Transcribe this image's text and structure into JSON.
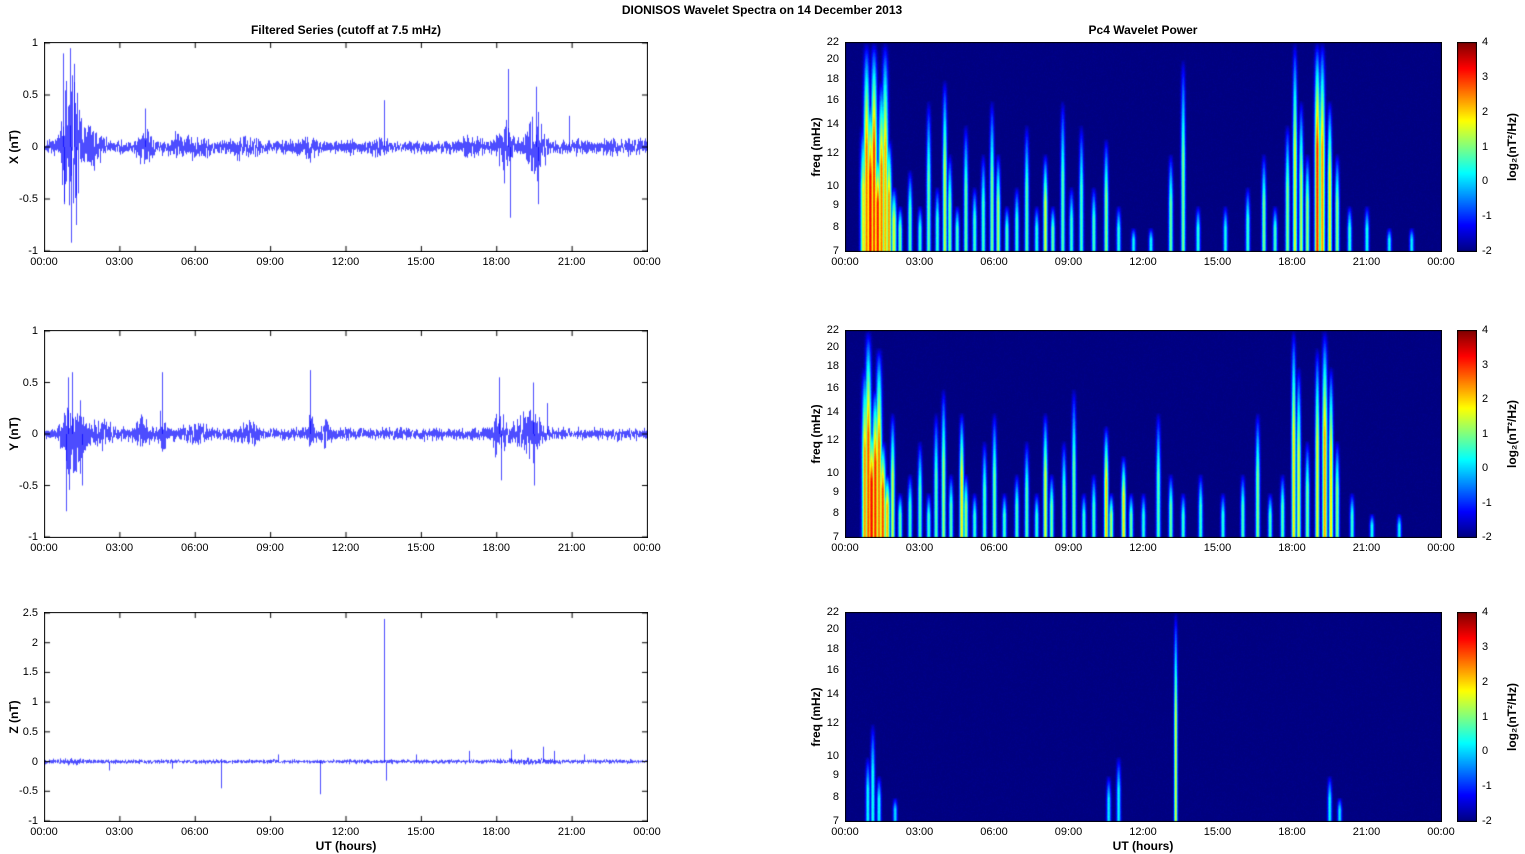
{
  "title": "DIONISOS Wavelet Spectra on 14 December  2013",
  "titles": {
    "left": "Filtered Series (cutoff at 7.5 mHz)",
    "right": "Pc4 Wavelet Power"
  },
  "labels": {
    "x": "UT (hours)",
    "freq": "freq (mHz)"
  },
  "x_ticks": [
    "00:00",
    "03:00",
    "06:00",
    "09:00",
    "12:00",
    "15:00",
    "18:00",
    "21:00",
    "00:00"
  ],
  "freq_ticks": [
    22,
    20,
    18,
    16,
    14,
    12,
    10,
    9,
    8,
    7
  ],
  "freq_range": [
    7,
    22
  ],
  "colorbar": {
    "label": "log₂(nT²/Hz)",
    "range": [
      -2,
      4
    ],
    "ticks": [
      4,
      3,
      2,
      1,
      0,
      -1,
      -2
    ]
  },
  "chart_data": [
    {
      "type": "line",
      "name": "x-filtered-series",
      "ylabel": "X (nT)",
      "ylim": [
        -1,
        1
      ],
      "yticks": [
        1,
        0.5,
        0,
        -0.5,
        -1
      ],
      "x_hours": [
        0,
        24
      ],
      "line_color": "#0000ff",
      "noise_nT": 0.065,
      "seed": 7,
      "bursts": [
        {
          "t": 1.05,
          "w": 0.28,
          "a": 0.5
        },
        {
          "t": 1.3,
          "w": 0.5,
          "a": 0.25
        },
        {
          "t": 0.8,
          "w": 0.12,
          "a": 0.25
        },
        {
          "t": 2.1,
          "w": 0.3,
          "a": 0.1
        },
        {
          "t": 4.0,
          "w": 0.25,
          "a": 0.2
        },
        {
          "t": 5.3,
          "w": 0.3,
          "a": 0.08
        },
        {
          "t": 6.2,
          "w": 0.5,
          "a": 0.05
        },
        {
          "t": 8.0,
          "w": 0.5,
          "a": 0.05
        },
        {
          "t": 10.5,
          "w": 0.3,
          "a": 0.07
        },
        {
          "t": 13.3,
          "w": 0.2,
          "a": 0.05
        },
        {
          "t": 16.9,
          "w": 0.4,
          "a": 0.05
        },
        {
          "t": 18.35,
          "w": 0.25,
          "a": 0.22
        },
        {
          "t": 19.55,
          "w": 0.35,
          "a": 0.28
        },
        {
          "t": 22.5,
          "w": 1.2,
          "a": 0.02
        }
      ],
      "spikes": [
        {
          "t": 0.75,
          "a": 0.9
        },
        {
          "t": 0.8,
          "a": -0.55
        },
        {
          "t": 1.02,
          "a": 0.95
        },
        {
          "t": 1.08,
          "a": -0.92
        },
        {
          "t": 1.2,
          "a": 0.8
        },
        {
          "t": 1.28,
          "a": -0.75
        },
        {
          "t": 4.0,
          "a": 0.37
        },
        {
          "t": 13.55,
          "a": 0.45
        },
        {
          "t": 18.48,
          "a": 0.75
        },
        {
          "t": 18.55,
          "a": -0.68
        },
        {
          "t": 19.6,
          "a": 0.58
        },
        {
          "t": 19.68,
          "a": -0.55
        },
        {
          "t": 20.9,
          "a": 0.3
        }
      ]
    },
    {
      "type": "line",
      "name": "y-filtered-series",
      "ylabel": "Y (nT)",
      "ylim": [
        -1,
        1
      ],
      "yticks": [
        1,
        0.5,
        0,
        -0.5,
        -1
      ],
      "x_hours": [
        0,
        24
      ],
      "line_color": "#0000ff",
      "noise_nT": 0.06,
      "seed": 11,
      "bursts": [
        {
          "t": 1.0,
          "w": 0.3,
          "a": 0.32
        },
        {
          "t": 1.45,
          "w": 0.3,
          "a": 0.22
        },
        {
          "t": 2.3,
          "w": 0.4,
          "a": 0.08
        },
        {
          "t": 3.9,
          "w": 0.3,
          "a": 0.12
        },
        {
          "t": 4.7,
          "w": 0.12,
          "a": 0.22
        },
        {
          "t": 6.0,
          "w": 0.5,
          "a": 0.05
        },
        {
          "t": 8.1,
          "w": 0.4,
          "a": 0.08
        },
        {
          "t": 10.6,
          "w": 0.15,
          "a": 0.15
        },
        {
          "t": 11.2,
          "w": 0.15,
          "a": 0.1
        },
        {
          "t": 18.15,
          "w": 0.3,
          "a": 0.2
        },
        {
          "t": 19.3,
          "w": 0.45,
          "a": 0.22
        }
      ],
      "spikes": [
        {
          "t": 0.88,
          "a": -0.75
        },
        {
          "t": 0.95,
          "a": 0.55
        },
        {
          "t": 1.12,
          "a": 0.6
        },
        {
          "t": 1.5,
          "a": -0.5
        },
        {
          "t": 4.68,
          "a": 0.6
        },
        {
          "t": 10.58,
          "a": 0.62
        },
        {
          "t": 18.12,
          "a": 0.55
        },
        {
          "t": 18.2,
          "a": -0.45
        },
        {
          "t": 19.45,
          "a": 0.5
        },
        {
          "t": 19.52,
          "a": -0.5
        },
        {
          "t": 20.0,
          "a": 0.3
        }
      ]
    },
    {
      "type": "line",
      "name": "z-filtered-series",
      "ylabel": "Z (nT)",
      "ylim": [
        -1,
        2.5
      ],
      "yticks": [
        2.5,
        2,
        1.5,
        1,
        0.5,
        0,
        -0.5,
        -1
      ],
      "x_hours": [
        0,
        24
      ],
      "line_color": "#0000ff",
      "noise_nT": 0.035,
      "seed": 13,
      "bursts": [
        {
          "t": 1.1,
          "w": 0.5,
          "a": 0.02
        },
        {
          "t": 19.3,
          "w": 1.0,
          "a": 0.02
        }
      ],
      "spikes": [
        {
          "t": 2.6,
          "a": -0.15
        },
        {
          "t": 5.1,
          "a": -0.12
        },
        {
          "t": 7.05,
          "a": -0.45
        },
        {
          "t": 9.3,
          "a": 0.12
        },
        {
          "t": 11.0,
          "a": -0.55
        },
        {
          "t": 13.52,
          "a": 2.4
        },
        {
          "t": 13.6,
          "a": -0.32
        },
        {
          "t": 14.8,
          "a": 0.12
        },
        {
          "t": 16.9,
          "a": 0.18
        },
        {
          "t": 18.6,
          "a": 0.2
        },
        {
          "t": 19.85,
          "a": 0.25
        },
        {
          "t": 20.3,
          "a": 0.18
        },
        {
          "t": 21.5,
          "a": 0.12
        }
      ]
    },
    {
      "type": "heatmap",
      "name": "x-wavelet-power",
      "ylabel": "freq (mHz)",
      "flim": [
        7,
        22
      ],
      "intensity_log2_range": [
        -2,
        4
      ],
      "seed": 21,
      "events": [
        [
          0.72,
          7,
          14,
          1.8,
          2
        ],
        [
          0.85,
          7,
          22,
          2.6,
          2
        ],
        [
          1.0,
          7,
          16,
          3.3,
          2.2
        ],
        [
          1.15,
          7,
          22,
          3.0,
          2
        ],
        [
          1.3,
          7,
          12,
          3.2,
          2
        ],
        [
          1.45,
          7,
          18,
          2.6,
          2
        ],
        [
          1.6,
          7,
          22,
          2.2,
          2
        ],
        [
          1.75,
          7,
          13,
          2.4,
          1.8
        ],
        [
          1.95,
          7,
          10,
          1.6,
          1.8
        ],
        [
          2.2,
          7,
          9,
          1.0,
          1.5
        ],
        [
          2.6,
          7,
          11,
          0.8
        ],
        [
          3.0,
          7,
          9,
          0.6
        ],
        [
          3.35,
          7,
          16,
          0.9
        ],
        [
          3.7,
          7,
          10,
          0.6
        ],
        [
          4.0,
          7,
          18,
          1.5
        ],
        [
          4.2,
          7,
          12,
          1.0
        ],
        [
          4.5,
          7,
          9,
          0.7
        ],
        [
          4.85,
          7,
          14,
          0.9
        ],
        [
          5.2,
          7,
          10,
          0.7
        ],
        [
          5.55,
          7,
          12,
          0.7
        ],
        [
          5.9,
          7,
          16,
          1.0
        ],
        [
          6.15,
          7,
          12,
          1.3
        ],
        [
          6.5,
          7,
          9,
          0.7
        ],
        [
          6.9,
          7,
          10,
          0.6
        ],
        [
          7.3,
          7,
          14,
          0.8
        ],
        [
          7.7,
          7,
          9,
          0.5
        ],
        [
          8.05,
          7,
          12,
          1.6
        ],
        [
          8.35,
          7,
          9,
          0.9
        ],
        [
          8.75,
          7,
          16,
          0.8
        ],
        [
          9.1,
          7,
          10,
          0.6
        ],
        [
          9.5,
          7,
          14,
          0.7
        ],
        [
          10.0,
          7,
          10,
          0.7
        ],
        [
          10.5,
          7,
          13,
          1.1
        ],
        [
          11.0,
          7,
          9,
          0.5
        ],
        [
          11.6,
          7,
          8,
          0.3
        ],
        [
          12.3,
          7,
          8,
          0.3
        ],
        [
          13.1,
          7,
          12,
          0.9
        ],
        [
          13.6,
          7,
          20,
          1.0
        ],
        [
          14.2,
          7,
          9,
          0.5
        ],
        [
          15.3,
          7,
          9,
          0.4
        ],
        [
          16.2,
          7,
          10,
          0.6
        ],
        [
          16.85,
          7,
          12,
          1.0
        ],
        [
          17.3,
          7,
          9,
          0.7
        ],
        [
          17.8,
          7,
          14,
          1.1
        ],
        [
          18.1,
          7,
          22,
          1.7
        ],
        [
          18.35,
          7,
          16,
          1.4
        ],
        [
          18.6,
          7,
          12,
          1.2
        ],
        [
          19.0,
          7,
          22,
          3.1,
          1.8
        ],
        [
          19.2,
          7,
          22,
          2.4,
          1.8
        ],
        [
          19.5,
          7,
          16,
          1.9
        ],
        [
          19.8,
          7,
          12,
          1.1
        ],
        [
          20.3,
          7,
          9,
          0.6
        ],
        [
          21.0,
          7,
          9,
          0.4
        ],
        [
          21.9,
          7,
          8,
          0.3
        ],
        [
          22.8,
          7,
          8,
          0.25
        ]
      ]
    },
    {
      "type": "heatmap",
      "name": "y-wavelet-power",
      "ylabel": "freq (mHz)",
      "flim": [
        7,
        22
      ],
      "intensity_log2_range": [
        -2,
        4
      ],
      "seed": 22,
      "events": [
        [
          0.78,
          7,
          18,
          2.4,
          2
        ],
        [
          0.92,
          7,
          22,
          2.8,
          2
        ],
        [
          1.05,
          7,
          13,
          3.3,
          2.2
        ],
        [
          1.2,
          7,
          16,
          3.1,
          2
        ],
        [
          1.35,
          7,
          20,
          2.6,
          2
        ],
        [
          1.5,
          7,
          12,
          2.9,
          2
        ],
        [
          1.68,
          7,
          10,
          2.2,
          1.8
        ],
        [
          1.9,
          7,
          14,
          1.5
        ],
        [
          2.2,
          7,
          9,
          0.9
        ],
        [
          2.6,
          7,
          10,
          0.7
        ],
        [
          3.0,
          7,
          12,
          0.8
        ],
        [
          3.35,
          7,
          9,
          0.6
        ],
        [
          3.65,
          7,
          14,
          0.8
        ],
        [
          3.95,
          7,
          16,
          1.2
        ],
        [
          4.25,
          7,
          10,
          0.8
        ],
        [
          4.68,
          7,
          14,
          1.9
        ],
        [
          4.85,
          7,
          10,
          1.2
        ],
        [
          5.2,
          7,
          9,
          0.6
        ],
        [
          5.6,
          7,
          12,
          0.8
        ],
        [
          6.0,
          7,
          14,
          1.0
        ],
        [
          6.4,
          7,
          9,
          0.7
        ],
        [
          6.9,
          7,
          10,
          0.7
        ],
        [
          7.3,
          7,
          12,
          0.8
        ],
        [
          7.7,
          7,
          9,
          0.6
        ],
        [
          8.05,
          7,
          14,
          1.6
        ],
        [
          8.3,
          7,
          10,
          1.0
        ],
        [
          8.8,
          7,
          12,
          0.8
        ],
        [
          9.2,
          7,
          16,
          0.9
        ],
        [
          9.6,
          7,
          9,
          0.6
        ],
        [
          10.0,
          7,
          10,
          0.7
        ],
        [
          10.5,
          7,
          13,
          2.1
        ],
        [
          10.7,
          7,
          9,
          1.3
        ],
        [
          11.2,
          7,
          11,
          1.9
        ],
        [
          11.5,
          7,
          9,
          0.9
        ],
        [
          12.0,
          7,
          9,
          0.5
        ],
        [
          12.6,
          7,
          14,
          0.8
        ],
        [
          13.1,
          7,
          10,
          0.9
        ],
        [
          13.6,
          7,
          9,
          0.6
        ],
        [
          14.3,
          7,
          10,
          0.6
        ],
        [
          15.2,
          7,
          9,
          0.5
        ],
        [
          16.0,
          7,
          10,
          0.7
        ],
        [
          16.6,
          7,
          14,
          1.1
        ],
        [
          17.1,
          7,
          9,
          0.7
        ],
        [
          17.6,
          7,
          10,
          0.8
        ],
        [
          18.05,
          7,
          22,
          1.9
        ],
        [
          18.25,
          7,
          18,
          1.6
        ],
        [
          18.6,
          7,
          12,
          1.0
        ],
        [
          19.0,
          7,
          20,
          1.7
        ],
        [
          19.3,
          7,
          22,
          2.3,
          1.8
        ],
        [
          19.55,
          7,
          18,
          2.0
        ],
        [
          19.8,
          7,
          12,
          1.1
        ],
        [
          20.4,
          7,
          9,
          0.6
        ],
        [
          21.2,
          7,
          8,
          0.4
        ],
        [
          22.3,
          7,
          8,
          0.3
        ]
      ]
    },
    {
      "type": "heatmap",
      "name": "z-wavelet-power",
      "ylabel": "freq (mHz)",
      "flim": [
        7,
        22
      ],
      "intensity_log2_range": [
        -2,
        4
      ],
      "seed": 23,
      "events": [
        [
          0.9,
          7,
          10,
          0.3
        ],
        [
          1.1,
          7,
          12,
          0.4
        ],
        [
          1.35,
          7,
          9,
          0.3
        ],
        [
          2.0,
          7,
          8,
          0.1
        ],
        [
          10.6,
          7,
          9,
          0.2
        ],
        [
          11.0,
          7,
          10,
          0.25
        ],
        [
          13.3,
          7,
          22,
          1.6,
          1.2
        ],
        [
          19.5,
          7,
          9,
          0.25
        ],
        [
          19.9,
          7,
          8,
          0.15
        ]
      ]
    }
  ]
}
